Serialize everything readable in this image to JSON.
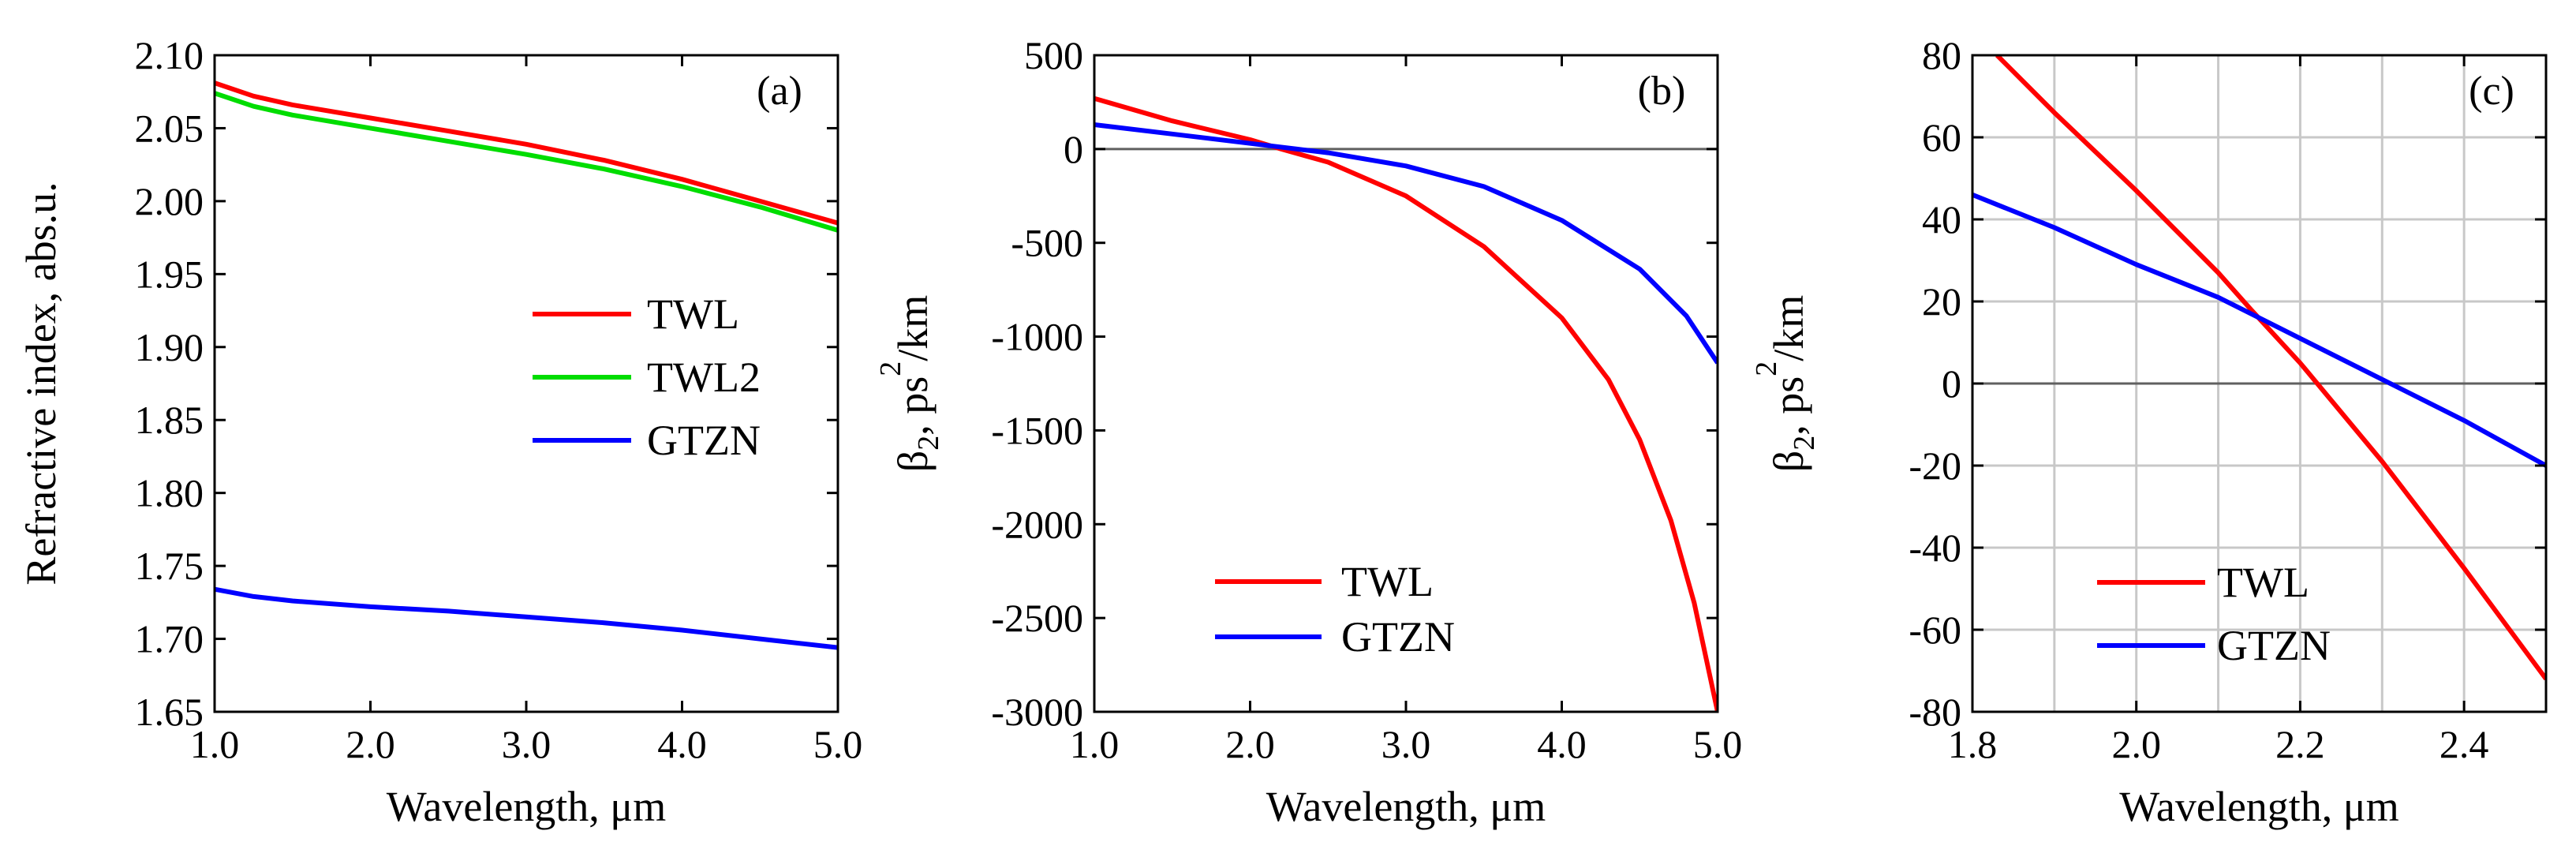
{
  "figure": {
    "panels": [
      "a",
      "b",
      "c"
    ]
  },
  "chart_data": [
    {
      "type": "line",
      "panel_tag": "(a)",
      "title": "",
      "xlabel": "Wavelength, μm",
      "ylabel": "Refractive index, abs.u.",
      "xlim": [
        1.0,
        5.0
      ],
      "ylim": [
        1.65,
        2.1
      ],
      "xticks": [
        1.0,
        2.0,
        3.0,
        4.0,
        5.0
      ],
      "xtick_labels": [
        "1.0",
        "2.0",
        "3.0",
        "4.0",
        "5.0"
      ],
      "yticks": [
        1.65,
        1.7,
        1.75,
        1.8,
        1.85,
        1.9,
        1.95,
        2.0,
        2.05,
        2.1
      ],
      "ytick_labels": [
        "1.65",
        "1.70",
        "1.75",
        "1.80",
        "1.85",
        "1.90",
        "1.95",
        "2.00",
        "2.05",
        "2.10"
      ],
      "grid": false,
      "legend_position": "center-right",
      "series": [
        {
          "name": "TWL",
          "color": "#ff0000",
          "x": [
            1.0,
            1.25,
            1.5,
            2.0,
            2.5,
            3.0,
            3.5,
            4.0,
            4.5,
            5.0
          ],
          "y": [
            2.081,
            2.072,
            2.066,
            2.057,
            2.048,
            2.039,
            2.028,
            2.015,
            2.0,
            1.985
          ]
        },
        {
          "name": "TWL2",
          "color": "#00dd00",
          "x": [
            1.0,
            1.25,
            1.5,
            2.0,
            2.5,
            3.0,
            3.5,
            4.0,
            4.5,
            5.0
          ],
          "y": [
            2.074,
            2.065,
            2.059,
            2.05,
            2.041,
            2.032,
            2.022,
            2.01,
            1.996,
            1.98
          ]
        },
        {
          "name": "GTZN",
          "color": "#0000ff",
          "x": [
            1.0,
            1.25,
            1.5,
            2.0,
            2.5,
            3.0,
            3.5,
            4.0,
            4.5,
            5.0
          ],
          "y": [
            1.734,
            1.729,
            1.726,
            1.722,
            1.719,
            1.715,
            1.711,
            1.706,
            1.7,
            1.694
          ]
        }
      ]
    },
    {
      "type": "line",
      "panel_tag": "(b)",
      "title": "",
      "xlabel": "Wavelength, μm",
      "ylabel_main": "β",
      "ylabel_sub": "2",
      "ylabel_mid": ", ps",
      "ylabel_sup": "2",
      "ylabel_tail": "/km",
      "xlim": [
        1.0,
        5.0
      ],
      "ylim": [
        -3000,
        500
      ],
      "xticks": [
        1.0,
        2.0,
        3.0,
        4.0,
        5.0
      ],
      "xtick_labels": [
        "1.0",
        "2.0",
        "3.0",
        "4.0",
        "5.0"
      ],
      "yticks": [
        -3000,
        -2500,
        -2000,
        -1500,
        -1000,
        -500,
        0,
        500
      ],
      "ytick_labels": [
        "-3000",
        "-2500",
        "-2000",
        "-1500",
        "-1000",
        "-500",
        "0",
        "500"
      ],
      "zero_line": true,
      "grid": false,
      "legend_position": "bottom-center",
      "series": [
        {
          "name": "TWL",
          "color": "#ff0000",
          "x": [
            1.0,
            1.5,
            2.0,
            2.2,
            2.5,
            3.0,
            3.5,
            4.0,
            4.3,
            4.5,
            4.7,
            4.85,
            5.0
          ],
          "y": [
            270,
            150,
            50,
            0,
            -70,
            -250,
            -520,
            -900,
            -1230,
            -1550,
            -1980,
            -2420,
            -3000
          ]
        },
        {
          "name": "GTZN",
          "color": "#0000ff",
          "x": [
            1.0,
            1.5,
            2.0,
            2.3,
            2.5,
            3.0,
            3.5,
            4.0,
            4.5,
            4.8,
            5.0
          ],
          "y": [
            130,
            80,
            30,
            0,
            -20,
            -90,
            -200,
            -380,
            -640,
            -890,
            -1140
          ]
        }
      ]
    },
    {
      "type": "line",
      "panel_tag": "(c)",
      "title": "",
      "xlabel": "Wavelength, μm",
      "ylabel_main": "β",
      "ylabel_sub": "2",
      "ylabel_mid": ", ps",
      "ylabel_sup": "2",
      "ylabel_tail": "/km",
      "xlim": [
        1.8,
        2.5
      ],
      "ylim": [
        -80,
        80
      ],
      "xticks": [
        1.8,
        2.0,
        2.2,
        2.4
      ],
      "xtick_labels": [
        "1.8",
        "2.0",
        "2.2",
        "2.4"
      ],
      "minor_xgrid": [
        1.9,
        2.1,
        2.3,
        2.5
      ],
      "yticks": [
        -80,
        -60,
        -40,
        -20,
        0,
        20,
        40,
        60,
        80
      ],
      "ytick_labels": [
        "-80",
        "-60",
        "-40",
        "-20",
        "0",
        "20",
        "40",
        "60",
        "80"
      ],
      "zero_line": true,
      "grid": true,
      "legend_position": "bottom-left",
      "series": [
        {
          "name": "TWL",
          "color": "#ff0000",
          "x": [
            1.83,
            1.9,
            2.0,
            2.1,
            2.14,
            2.2,
            2.3,
            2.4,
            2.5
          ],
          "y": [
            80,
            66,
            47,
            27,
            18,
            5,
            -19,
            -45,
            -72
          ]
        },
        {
          "name": "GTZN",
          "color": "#0000ff",
          "x": [
            1.8,
            1.9,
            2.0,
            2.1,
            2.14,
            2.2,
            2.3,
            2.4,
            2.5
          ],
          "y": [
            46,
            38,
            29,
            21,
            17,
            11,
            1,
            -9,
            -20
          ]
        }
      ]
    }
  ]
}
